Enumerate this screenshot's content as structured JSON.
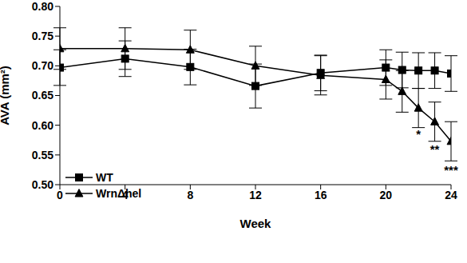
{
  "chart_data": {
    "type": "line",
    "x_label": "Week",
    "y_label": "AVA (mm²)",
    "x": [
      0,
      4,
      8,
      12,
      16,
      20,
      21,
      22,
      23,
      24
    ],
    "series": [
      {
        "name": "WT",
        "color": "#000000",
        "marker": "square",
        "line_style": "solid",
        "values": [
          0.697,
          0.712,
          0.698,
          0.666,
          0.688,
          0.697,
          0.693,
          0.692,
          0.692,
          0.687
        ],
        "errors": [
          0.03,
          0.03,
          0.03,
          0.037,
          0.03,
          0.03,
          0.03,
          0.03,
          0.03,
          0.03
        ]
      },
      {
        "name": "WrnΔhel",
        "color": "#000000",
        "marker": "triangle",
        "line_style": "solid",
        "values": [
          0.729,
          0.729,
          0.727,
          0.7,
          0.684,
          0.677,
          0.657,
          0.629,
          0.606,
          0.573
        ],
        "errors": [
          0.035,
          0.035,
          0.033,
          0.033,
          0.033,
          0.033,
          0.035,
          0.033,
          0.033,
          0.033
        ]
      }
    ],
    "xlim": [
      0,
      24
    ],
    "xticks": [
      0,
      4,
      8,
      12,
      16,
      20,
      24
    ],
    "ylim": [
      0.5,
      0.8
    ],
    "yticks": [
      {
        "value": 0.5,
        "label": "0.50"
      },
      {
        "value": 0.55,
        "label": "0.55"
      },
      {
        "value": 0.6,
        "label": "0.60"
      },
      {
        "value": 0.65,
        "label": "0.65"
      },
      {
        "value": 0.7,
        "label": "0.70"
      },
      {
        "value": 0.75,
        "label": "0.75"
      },
      {
        "value": 0.8,
        "label": "0.80"
      }
    ],
    "annotations": [
      {
        "text": "*",
        "x": 22,
        "y": 0.585
      },
      {
        "text": "**",
        "x": 23,
        "y": 0.56
      },
      {
        "text": "***",
        "x": 24,
        "y": 0.525
      }
    ],
    "legend": "lower left",
    "grid": false
  }
}
